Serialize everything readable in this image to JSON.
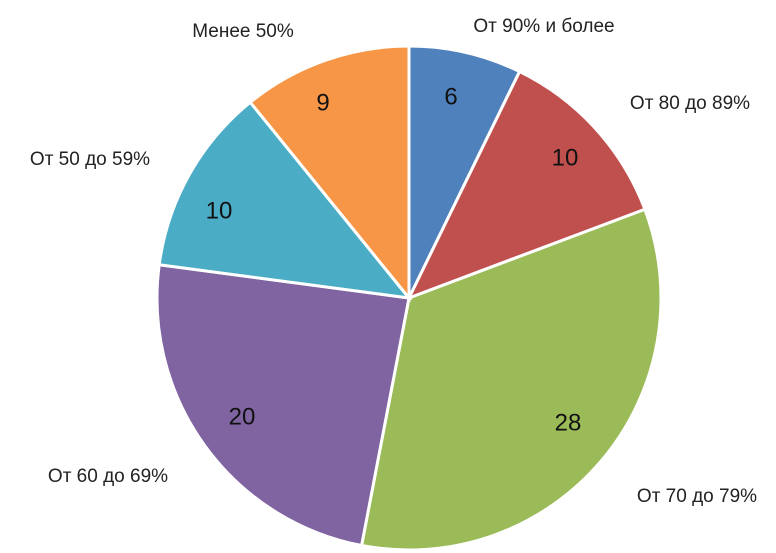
{
  "chart_data": {
    "type": "pie",
    "title": "",
    "categories": [
      "От 90% и более",
      "От 80 до 89%",
      "От 70 до 79%",
      "От 60 до 69%",
      "От 50 до 59%",
      "Менее 50%"
    ],
    "values": [
      6,
      10,
      28,
      20,
      10,
      9
    ],
    "colors": [
      "#4F81BD",
      "#C0504D",
      "#9BBB59",
      "#8064A2",
      "#4BACC6",
      "#F79646"
    ],
    "start_angle_deg": 0,
    "direction": "clockwise",
    "legend": "none",
    "data_labels": "inside"
  }
}
